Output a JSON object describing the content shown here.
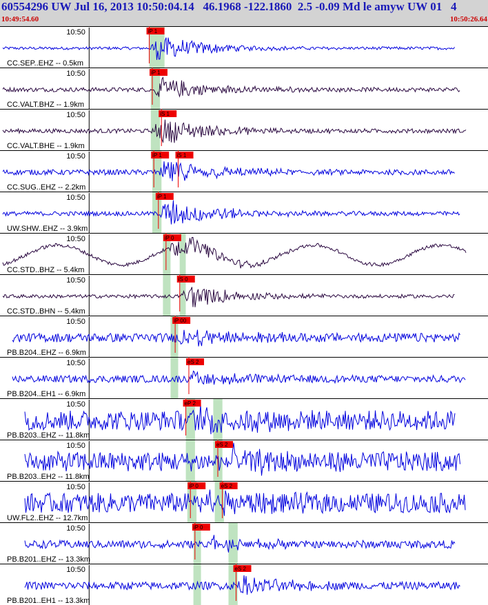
{
  "header": {
    "title": "60554296 UW Jul 16, 2013 10:50:04.14   46.1968 -122.1860  2.5 -0.09 Md le amyw UW 01   4",
    "start_time": "10:49:54.60",
    "end_time": "10:50:26.64"
  },
  "colors": {
    "header_bg": "#d3d3d3",
    "title": "#1a1ab8",
    "time_labels": "#cc0000",
    "blue_trace": "#0000dd",
    "purple_trace": "#2a0840",
    "pick_flag": "#ee0000",
    "pick_window": "#bfe3c0"
  },
  "chart_data": {
    "type": "line",
    "description_none": "",
    "x_unit": "seconds",
    "x_range": [
      "10:49:54.60",
      "10:50:26.64"
    ],
    "tick_label": "10:50",
    "tick_time": "10:50:00",
    "traces": [
      {
        "label": "CC.SEP..EHZ -- 0.5km",
        "color": "blue",
        "picks": [
          {
            "label": "iP 1",
            "t": 9.8
          }
        ],
        "windows": [
          [
            9.8,
            10.8
          ]
        ],
        "onset": 9.8,
        "amp": 0.9,
        "noise": 0.08
      },
      {
        "label": "CC.VALT.BHZ -- 1.9km",
        "color": "purple",
        "picks": [
          {
            "label": "iP 1",
            "t": 10.0
          }
        ],
        "windows": [
          [
            9.9,
            10.5
          ]
        ],
        "onset": 10.0,
        "amp": 0.8,
        "noise": 0.12
      },
      {
        "label": "CC.VALT.BHE -- 1.9km",
        "color": "purple",
        "picks": [
          {
            "label": "iS 1",
            "t": 10.6
          }
        ],
        "windows": [
          [
            9.9,
            10.5
          ]
        ],
        "onset": 10.0,
        "amp": 0.9,
        "noise": 0.12
      },
      {
        "label": "CC.SUG..EHZ -- 2.2km",
        "color": "blue",
        "picks": [
          {
            "label": "iP 1",
            "t": 10.1
          },
          {
            "label": "iS 1",
            "t": 11.7
          }
        ],
        "windows": [
          [
            10.0,
            10.6
          ]
        ],
        "onset": 10.3,
        "amp": 0.9,
        "noise": 0.15
      },
      {
        "label": "UW.SHW..EHZ -- 3.9km",
        "color": "blue",
        "picks": [
          {
            "label": "iP 1",
            "t": 10.4
          }
        ],
        "windows": [
          [
            10.0,
            10.6
          ]
        ],
        "onset": 10.4,
        "amp": 0.95,
        "noise": 0.12
      },
      {
        "label": "CC.STD..BHZ -- 5.4km",
        "color": "purple",
        "picks": [
          {
            "label": "iP 0",
            "t": 10.9
          }
        ],
        "windows": [
          [
            10.7,
            11.2
          ],
          [
            11.8,
            12.2
          ]
        ],
        "onset": 11.0,
        "amp": 0.7,
        "noise": 0.1,
        "wave": 0.55
      },
      {
        "label": "CC.STD..BHN -- 5.4km",
        "color": "purple",
        "picks": [
          {
            "label": "iS 0",
            "t": 11.8
          }
        ],
        "windows": [
          [
            10.7,
            11.2
          ],
          [
            11.8,
            12.2
          ]
        ],
        "onset": 11.8,
        "amp": 0.85,
        "noise": 0.1
      },
      {
        "label": "PB.B204..EHZ -- 6.9km",
        "color": "blue",
        "picks": [
          {
            "label": "iP 00",
            "t": 11.5
          }
        ],
        "windows": [
          [
            11.2,
            11.7
          ]
        ],
        "onset": 11.5,
        "amp": 0.55,
        "noise": 0.25
      },
      {
        "label": "PB.B204..EH1 -- 6.9km",
        "color": "blue",
        "picks": [
          {
            "label": "eS 2",
            "t": 12.4
          }
        ],
        "windows": [
          [
            11.2,
            11.7
          ]
        ],
        "onset": 12.3,
        "amp": 0.5,
        "noise": 0.2
      },
      {
        "label": "PB.B203..EHZ -- 11.8km",
        "color": "blue",
        "picks": [
          {
            "label": "eP 2",
            "t": 12.2
          }
        ],
        "windows": [
          [
            12.2,
            12.8
          ],
          [
            14.0,
            14.6
          ]
        ],
        "onset": 12.6,
        "amp": 0.65,
        "noise": 0.55
      },
      {
        "label": "PB.B203..EH2 -- 11.8km",
        "color": "blue",
        "picks": [
          {
            "label": "eS 2",
            "t": 14.3
          }
        ],
        "windows": [
          [
            12.2,
            12.8
          ],
          [
            14.0,
            14.6
          ]
        ],
        "onset": 14.4,
        "amp": 0.7,
        "noise": 0.55
      },
      {
        "label": "UW.FL2..EHZ -- 12.7km",
        "color": "blue",
        "picks": [
          {
            "label": "iP 0",
            "t": 12.5
          },
          {
            "label": "eS 2",
            "t": 14.6
          }
        ],
        "windows": [
          [
            12.3,
            12.9
          ],
          [
            14.1,
            14.7
          ]
        ],
        "onset": 12.6,
        "amp": 0.7,
        "noise": 0.55
      },
      {
        "label": "PB.B201..EHZ -- 13.3km",
        "color": "blue",
        "picks": [
          {
            "label": "iP 0",
            "t": 12.8
          }
        ],
        "windows": [
          [
            12.7,
            13.2
          ],
          [
            15.0,
            15.6
          ]
        ],
        "onset": 13.2,
        "amp": 0.5,
        "noise": 0.22
      },
      {
        "label": "PB.B201..EH1 -- 13.3km",
        "color": "blue",
        "picks": [
          {
            "label": "eS 2",
            "t": 15.5
          }
        ],
        "windows": [
          [
            12.7,
            13.2
          ],
          [
            15.0,
            15.6
          ]
        ],
        "onset": 15.4,
        "amp": 0.55,
        "noise": 0.22
      }
    ]
  }
}
